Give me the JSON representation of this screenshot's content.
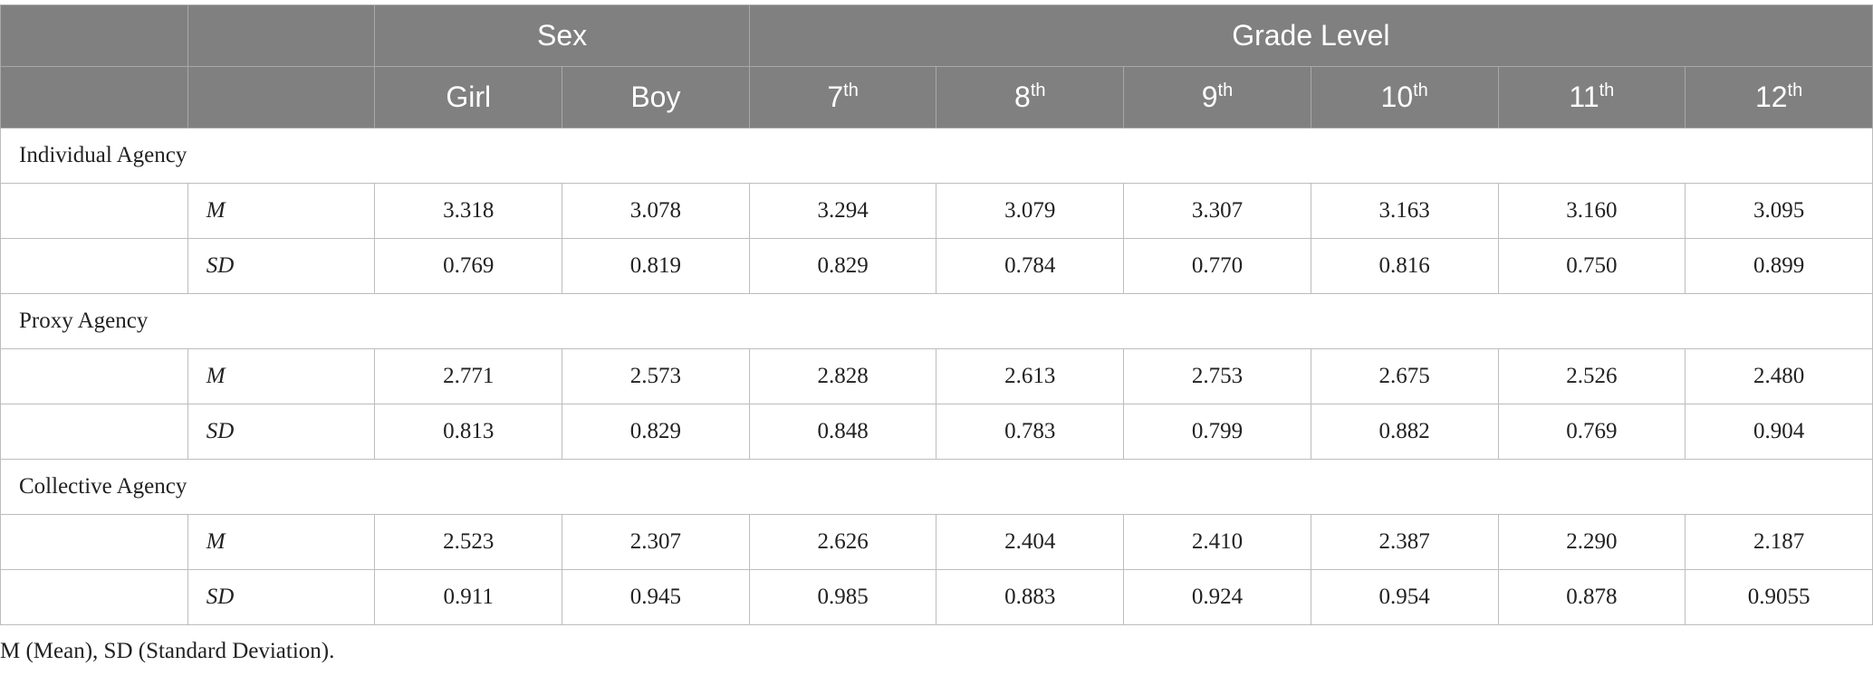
{
  "header": {
    "groups": [
      {
        "label": "Sex",
        "span": 2
      },
      {
        "label": "Grade Level",
        "span": 6
      }
    ],
    "columns": [
      {
        "text": "Girl"
      },
      {
        "text": "Boy"
      },
      {
        "text": "7",
        "sup": "th"
      },
      {
        "text": "8",
        "sup": "th"
      },
      {
        "text": "9",
        "sup": "th"
      },
      {
        "text": "10",
        "sup": "th"
      },
      {
        "text": "11",
        "sup": "th"
      },
      {
        "text": "12",
        "sup": "th"
      }
    ]
  },
  "sections": [
    {
      "name": "Individual Agency",
      "rows": [
        {
          "stat": "M",
          "values": [
            "3.318",
            "3.078",
            "3.294",
            "3.079",
            "3.307",
            "3.163",
            "3.160",
            "3.095"
          ]
        },
        {
          "stat": "SD",
          "values": [
            "0.769",
            "0.819",
            "0.829",
            "0.784",
            "0.770",
            "0.816",
            "0.750",
            "0.899"
          ]
        }
      ]
    },
    {
      "name": "Proxy Agency",
      "rows": [
        {
          "stat": "M",
          "values": [
            "2.771",
            "2.573",
            "2.828",
            "2.613",
            "2.753",
            "2.675",
            "2.526",
            "2.480"
          ]
        },
        {
          "stat": "SD",
          "values": [
            "0.813",
            "0.829",
            "0.848",
            "0.783",
            "0.799",
            "0.882",
            "0.769",
            "0.904"
          ]
        }
      ]
    },
    {
      "name": "Collective Agency",
      "rows": [
        {
          "stat": "M",
          "values": [
            "2.523",
            "2.307",
            "2.626",
            "2.404",
            "2.410",
            "2.387",
            "2.290",
            "2.187"
          ]
        },
        {
          "stat": "SD",
          "values": [
            "0.911",
            "0.945",
            "0.985",
            "0.883",
            "0.924",
            "0.954",
            "0.878",
            "0.9055"
          ]
        }
      ]
    }
  ],
  "footnote": "M (Mean), SD (Standard Deviation)."
}
